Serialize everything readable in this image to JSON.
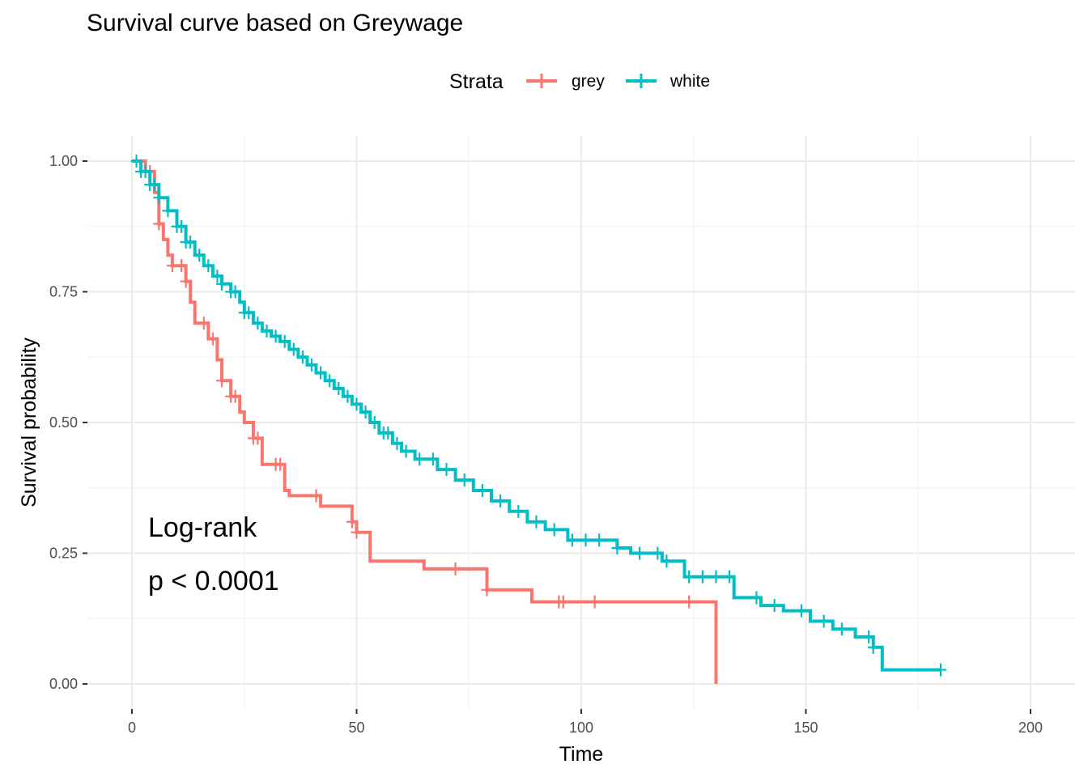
{
  "chart_data": {
    "type": "line",
    "subtype": "kaplan-meier step curve",
    "title": "Survival curve based on Greywage",
    "xlabel": "Time",
    "ylabel": "Survival probability",
    "xlim": [
      0,
      200
    ],
    "ylim": [
      0,
      1
    ],
    "x_ticks": [
      0,
      50,
      100,
      150,
      200
    ],
    "x_tick_labels": [
      "0",
      "50",
      "100",
      "150",
      "200"
    ],
    "y_ticks": [
      0,
      0.25,
      0.5,
      0.75,
      1.0
    ],
    "y_tick_labels": [
      "0.00",
      "0.25",
      "0.50",
      "0.75",
      "1.00"
    ],
    "grid": true,
    "legend": {
      "title": "Strata",
      "position": "top",
      "entries": [
        "grey",
        "white"
      ]
    },
    "annotation": {
      "line1": "Log-rank",
      "line2": "p < 0.0001"
    },
    "series": [
      {
        "name": "grey",
        "color": "#F8766D",
        "steps": [
          [
            0,
            1.0
          ],
          [
            3,
            0.98
          ],
          [
            5,
            0.94
          ],
          [
            6,
            0.88
          ],
          [
            7,
            0.85
          ],
          [
            8,
            0.82
          ],
          [
            9,
            0.8
          ],
          [
            12,
            0.77
          ],
          [
            13,
            0.73
          ],
          [
            14,
            0.69
          ],
          [
            17,
            0.66
          ],
          [
            19,
            0.62
          ],
          [
            20,
            0.58
          ],
          [
            22,
            0.55
          ],
          [
            24,
            0.52
          ],
          [
            25,
            0.5
          ],
          [
            27,
            0.47
          ],
          [
            29,
            0.42
          ],
          [
            34,
            0.37
          ],
          [
            35,
            0.36
          ],
          [
            42,
            0.34
          ],
          [
            49,
            0.31
          ],
          [
            50,
            0.29
          ],
          [
            53,
            0.235
          ],
          [
            65,
            0.22
          ],
          [
            79,
            0.18
          ],
          [
            89,
            0.157
          ],
          [
            130,
            0.0
          ]
        ],
        "censor_times": [
          4,
          6,
          9,
          11,
          12,
          16,
          18,
          20,
          22,
          23,
          27,
          28,
          32,
          33,
          41,
          49,
          50,
          72,
          79,
          95,
          96,
          103,
          124
        ]
      },
      {
        "name": "white",
        "color": "#00BFC4",
        "steps": [
          [
            0,
            1.0
          ],
          [
            2,
            0.98
          ],
          [
            4,
            0.955
          ],
          [
            6,
            0.93
          ],
          [
            8,
            0.905
          ],
          [
            10,
            0.875
          ],
          [
            12,
            0.845
          ],
          [
            14,
            0.82
          ],
          [
            16,
            0.8
          ],
          [
            18,
            0.78
          ],
          [
            20,
            0.765
          ],
          [
            22,
            0.75
          ],
          [
            24,
            0.73
          ],
          [
            25,
            0.71
          ],
          [
            27,
            0.69
          ],
          [
            29,
            0.675
          ],
          [
            31,
            0.665
          ],
          [
            33,
            0.655
          ],
          [
            35,
            0.64
          ],
          [
            37,
            0.625
          ],
          [
            39,
            0.61
          ],
          [
            41,
            0.595
          ],
          [
            43,
            0.58
          ],
          [
            45,
            0.565
          ],
          [
            47,
            0.55
          ],
          [
            49,
            0.535
          ],
          [
            51,
            0.52
          ],
          [
            53,
            0.5
          ],
          [
            55,
            0.48
          ],
          [
            58,
            0.46
          ],
          [
            60,
            0.445
          ],
          [
            63,
            0.43
          ],
          [
            68,
            0.41
          ],
          [
            72,
            0.39
          ],
          [
            76,
            0.37
          ],
          [
            80,
            0.35
          ],
          [
            84,
            0.33
          ],
          [
            88,
            0.31
          ],
          [
            92,
            0.295
          ],
          [
            97,
            0.275
          ],
          [
            108,
            0.26
          ],
          [
            111,
            0.25
          ],
          [
            118,
            0.235
          ],
          [
            123,
            0.205
          ],
          [
            134,
            0.165
          ],
          [
            140,
            0.15
          ],
          [
            145,
            0.14
          ],
          [
            151,
            0.12
          ],
          [
            156,
            0.105
          ],
          [
            161,
            0.09
          ],
          [
            165,
            0.07
          ],
          [
            167,
            0.027
          ],
          [
            180,
            0.027
          ]
        ],
        "censor_times": [
          1,
          2,
          3,
          4,
          5,
          6,
          8,
          10,
          11,
          12,
          13,
          15,
          17,
          19,
          20,
          22,
          23,
          25,
          26,
          28,
          30,
          32,
          34,
          36,
          38,
          40,
          42,
          44,
          46,
          48,
          50,
          52,
          54,
          56,
          57,
          59,
          61,
          64,
          67,
          70,
          74,
          78,
          82,
          86,
          90,
          94,
          98,
          101,
          104,
          108,
          113,
          117,
          119,
          124,
          127,
          130,
          133,
          139,
          143,
          149,
          154,
          158,
          164,
          165,
          180
        ]
      }
    ]
  }
}
